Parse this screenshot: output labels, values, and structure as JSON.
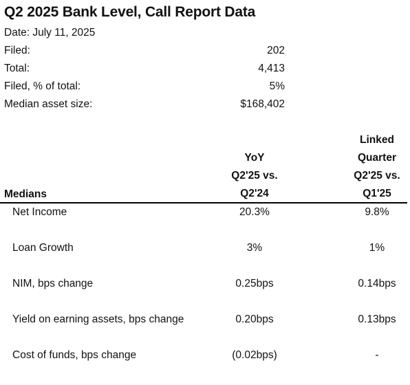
{
  "title": "Q2 2025 Bank Level, Call Report Data",
  "date_line": "Date: July 11, 2025",
  "summary": [
    {
      "label": "Filed:",
      "value": "202"
    },
    {
      "label": "Total:",
      "value": "4,413"
    },
    {
      "label": "Filed, % of total:",
      "value": "5%"
    },
    {
      "label": "Median asset size:",
      "value": "$168,402"
    }
  ],
  "table": {
    "medians_label": "Medians",
    "yoy_header": [
      "YoY",
      "Q2'25 vs.",
      "Q2'24"
    ],
    "lq_header": [
      "Linked",
      "Quarter",
      "Q2'25 vs.",
      "Q1'25"
    ],
    "rows": [
      {
        "label": "Net Income",
        "yoy": "20.3%",
        "lq": "9.8%"
      },
      {
        "label": "Loan Growth",
        "yoy": "3%",
        "lq": "1%"
      },
      {
        "label": "NIM, bps change",
        "yoy": "0.25bps",
        "lq": "0.14bps"
      },
      {
        "label": "Yield on earning assets, bps change",
        "yoy": "0.20bps",
        "lq": "0.13bps"
      },
      {
        "label": "Cost of funds, bps change",
        "yoy": "(0.02bps)",
        "lq": "-"
      }
    ]
  }
}
